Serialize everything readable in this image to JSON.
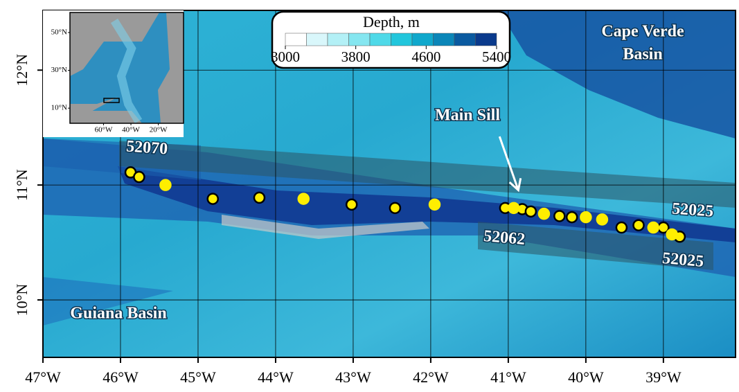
{
  "map": {
    "xlim": [
      -47,
      -38.07
    ],
    "ylim": [
      9.5,
      12.52
    ],
    "xticks": [
      {
        "value": -47,
        "label": "47°W"
      },
      {
        "value": -46,
        "label": "46°W"
      },
      {
        "value": -45,
        "label": "45°W"
      },
      {
        "value": -44,
        "label": "44°W"
      },
      {
        "value": -43,
        "label": "43°W"
      },
      {
        "value": -42,
        "label": "42°W"
      },
      {
        "value": -41,
        "label": "41°W"
      },
      {
        "value": -40,
        "label": "40°W"
      },
      {
        "value": -39,
        "label": "39°W"
      }
    ],
    "yticks": [
      {
        "value": 10,
        "label": "10°N"
      },
      {
        "value": 11,
        "label": "11°N"
      },
      {
        "value": 12,
        "label": "12°N"
      }
    ],
    "grid": true,
    "basins": {
      "cape_verde": [
        "Cape Verde",
        "Basin"
      ],
      "guiana": "Guiana Basin"
    },
    "sill": "Main Sill",
    "tracks": {
      "north": "52070",
      "north_end": "52025",
      "south": "52062",
      "south_end": "52025"
    },
    "stations": [
      {
        "color": "#ffee00",
        "edge": "#000000",
        "lon": [
          -45.87,
          -45.76,
          -44.81,
          -44.21,
          -43.02,
          -42.46,
          -41.04,
          -40.82,
          -40.71,
          -40.34,
          -40.18,
          -39.54,
          -39.32,
          -39.0,
          -38.79
        ],
        "lat": [
          11.11,
          11.07,
          10.88,
          10.89,
          10.83,
          10.8,
          10.8,
          10.79,
          10.77,
          10.73,
          10.72,
          10.63,
          10.65,
          10.63,
          10.55
        ]
      },
      {
        "color": "#ffee00",
        "edge": "#ffee00",
        "lon": [
          -45.42,
          -43.64,
          -41.95,
          -40.93,
          -40.54,
          -40.0,
          -39.79,
          -39.13,
          -38.89
        ],
        "lat": [
          11.0,
          10.88,
          10.83,
          10.8,
          10.75,
          10.72,
          10.7,
          10.63,
          10.57
        ]
      }
    ],
    "colorbar": {
      "title": "Depth, m",
      "range": [
        3000,
        5400
      ],
      "ticks": [
        3000,
        3800,
        4600,
        5400
      ],
      "colors": [
        "#ffffff",
        "#d9f7fb",
        "#b3f0f6",
        "#85e6f0",
        "#4fd9e8",
        "#22c6dc",
        "#10a8cc",
        "#0b86b8",
        "#0a5aa0",
        "#0a3a8c"
      ]
    },
    "inset": {
      "xlim": [
        -84.5,
        -1.6
      ],
      "ylim": [
        2,
        60.6
      ],
      "xticks": [
        {
          "value": -60,
          "label": "60°W"
        },
        {
          "value": -40,
          "label": "40°W"
        },
        {
          "value": -20,
          "label": "20°W"
        }
      ],
      "yticks": [
        {
          "value": 10,
          "label": "10°N"
        },
        {
          "value": 30,
          "label": "30°N"
        },
        {
          "value": 50,
          "label": "50°N"
        }
      ]
    }
  }
}
